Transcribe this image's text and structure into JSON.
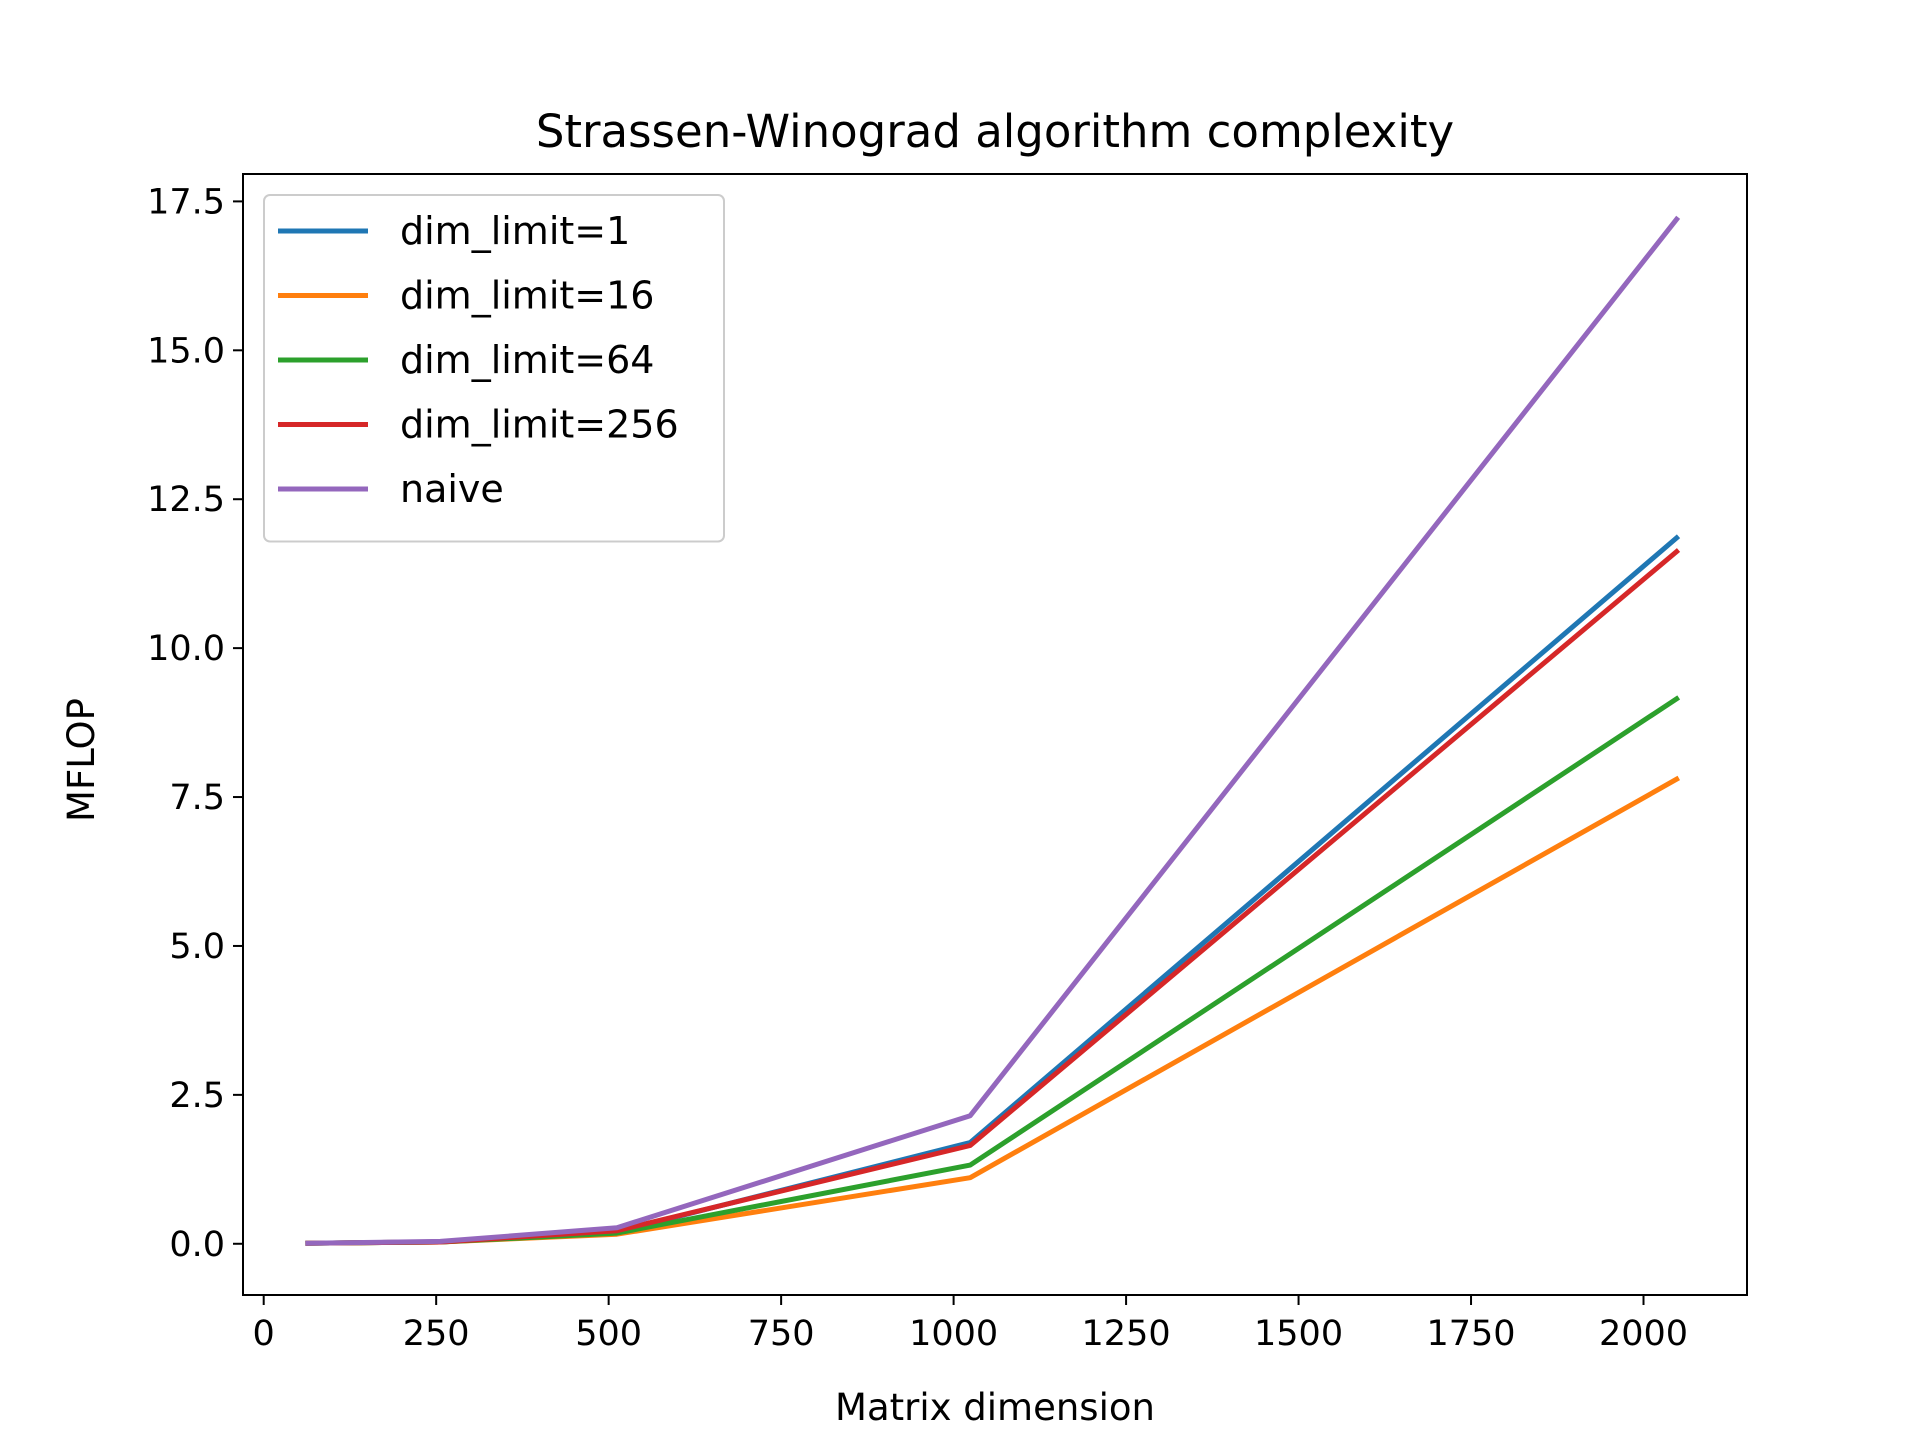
{
  "chart_data": {
    "type": "line",
    "title": "Strassen-Winograd algorithm complexity",
    "xlabel": "Matrix dimension",
    "ylabel": "MFLOP",
    "xlim": [
      -30,
      2150
    ],
    "ylim": [
      -0.86,
      17.96
    ],
    "xticks": [
      0,
      250,
      500,
      750,
      1000,
      1250,
      1500,
      1750,
      2000
    ],
    "xtick_labels": [
      "0",
      "250",
      "500",
      "750",
      "1000",
      "1250",
      "1500",
      "1750",
      "2000"
    ],
    "yticks": [
      0.0,
      2.5,
      5.0,
      7.5,
      10.0,
      12.5,
      15.0,
      17.5
    ],
    "ytick_labels": [
      "0.0",
      "2.5",
      "5.0",
      "7.5",
      "10.0",
      "12.5",
      "15.0",
      "17.5"
    ],
    "grid": false,
    "legend_position": "upper-left",
    "x": [
      64,
      256,
      512,
      1024,
      2048
    ],
    "series": [
      {
        "name": "dim_limit=1",
        "color": "#1f77b4",
        "values": [
          0.01,
          0.03,
          0.2,
          1.7,
          11.85
        ]
      },
      {
        "name": "dim_limit=16",
        "color": "#ff7f0e",
        "values": [
          0.01,
          0.03,
          0.16,
          1.11,
          7.8
        ]
      },
      {
        "name": "dim_limit=64",
        "color": "#2ca02c",
        "values": [
          0.01,
          0.03,
          0.18,
          1.32,
          9.15
        ]
      },
      {
        "name": "dim_limit=256",
        "color": "#d62728",
        "values": [
          0.01,
          0.03,
          0.22,
          1.65,
          11.62
        ]
      },
      {
        "name": "naive",
        "color": "#9467bd",
        "values": [
          0.01,
          0.04,
          0.27,
          2.15,
          17.2
        ]
      }
    ]
  }
}
